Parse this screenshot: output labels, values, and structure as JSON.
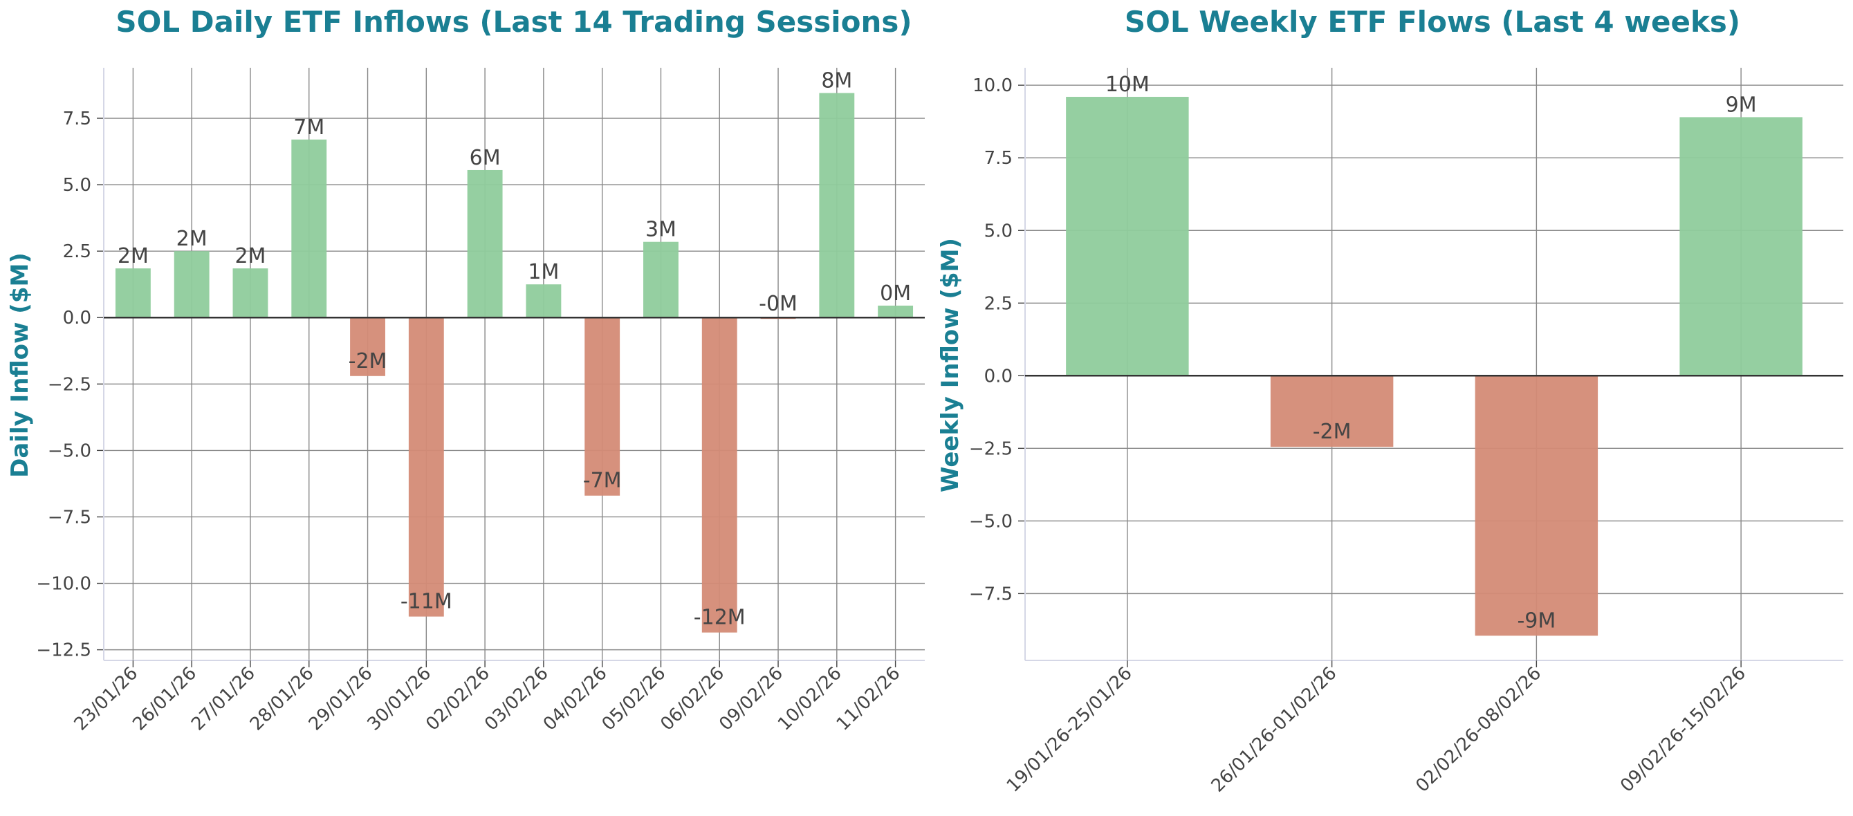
{
  "colors": {
    "title": "#1a7f93",
    "positive": "#8fcc9c",
    "negative": "#d48b76",
    "grid": "#888888",
    "zero_line": "#333333",
    "spine": "#d5d7e6",
    "text": "#444444"
  },
  "chart_data": [
    {
      "type": "bar",
      "title": "SOL Daily ETF Inflows (Last 14 Trading Sessions)",
      "xlabel": "",
      "ylabel": "Daily Inflow ($M)",
      "ylim": [
        -12.9,
        9.4
      ],
      "yticks": [
        7.5,
        5.0,
        2.5,
        0.0,
        -2.5,
        -5.0,
        -7.5,
        -10.0,
        -12.5
      ],
      "ytick_labels": [
        "7.5",
        "5.0",
        "2.5",
        "0.0",
        "−2.5",
        "−5.0",
        "−7.5",
        "−10.0",
        "−12.5"
      ],
      "grid": true,
      "categories": [
        "23/01/26",
        "26/01/26",
        "27/01/26",
        "28/01/26",
        "29/01/26",
        "30/01/26",
        "02/02/26",
        "03/02/26",
        "04/02/26",
        "05/02/26",
        "06/02/26",
        "09/02/26",
        "10/02/26",
        "11/02/26"
      ],
      "values": [
        1.85,
        2.5,
        1.85,
        6.7,
        -2.2,
        -11.25,
        5.55,
        1.25,
        -6.7,
        2.85,
        -11.85,
        -0.05,
        8.45,
        0.45
      ],
      "value_labels": [
        "2M",
        "2M",
        "2M",
        "7M",
        "-2M",
        "-11M",
        "6M",
        "1M",
        "-7M",
        "3M",
        "-12M",
        "-0M",
        "8M",
        "0M"
      ]
    },
    {
      "type": "bar",
      "title": "SOL Weekly ETF Flows (Last 4 weeks)",
      "xlabel": "",
      "ylabel": "Weekly Inflow ($M)",
      "ylim": [
        -9.8,
        10.6
      ],
      "yticks": [
        10.0,
        7.5,
        5.0,
        2.5,
        0.0,
        -2.5,
        -5.0,
        -7.5
      ],
      "ytick_labels": [
        "10.0",
        "7.5",
        "5.0",
        "2.5",
        "0.0",
        "−2.5",
        "−5.0",
        "−7.5"
      ],
      "grid": true,
      "categories": [
        "19/01/26-25/01/26",
        "26/01/26-01/02/26",
        "02/02/26-08/02/26",
        "09/02/26-15/02/26"
      ],
      "values": [
        9.6,
        -2.45,
        -8.95,
        8.9
      ],
      "value_labels": [
        "10M",
        "-2M",
        "-9M",
        "9M"
      ]
    }
  ]
}
